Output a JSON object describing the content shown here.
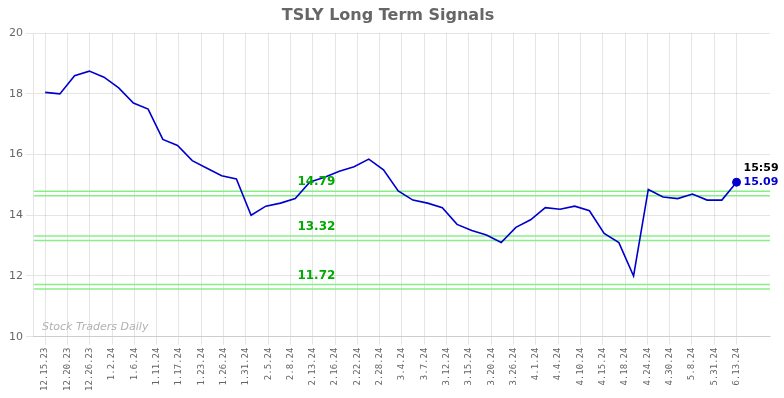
{
  "chart_data": {
    "type": "line",
    "title": "TSLY Long Term Signals",
    "x": [
      0,
      0.6596,
      1.3191,
      1.9787,
      2.6383,
      3.2979,
      3.9574,
      4.617,
      5.2766,
      5.9362,
      6.5957,
      7.2553,
      7.9149,
      8.5745,
      9.234,
      9.8936,
      10.5532,
      11.2128,
      11.8723,
      12.5319,
      13.1915,
      13.8511,
      14.5106,
      15.1702,
      15.8298,
      16.4894,
      17.1489,
      17.8085,
      18.4681,
      19.1277,
      19.7872,
      20.4468,
      21.1064,
      21.766,
      22.4255,
      23.0851,
      23.7447,
      24.4043,
      25.0638,
      25.7234,
      26.383,
      27.0426,
      27.7021,
      28.3617,
      29.0213,
      29.6809,
      30.3404,
      31
    ],
    "values": [
      18.05,
      18.0,
      18.6,
      18.75,
      18.55,
      18.2,
      17.7,
      17.5,
      16.5,
      16.3,
      15.8,
      15.55,
      15.3,
      15.2,
      14.0,
      14.3,
      14.4,
      14.55,
      15.1,
      15.25,
      15.45,
      15.6,
      15.85,
      15.5,
      14.8,
      14.5,
      14.4,
      14.25,
      13.7,
      13.5,
      13.35,
      13.1,
      13.6,
      13.85,
      14.25,
      14.2,
      14.3,
      14.15,
      13.4,
      13.1,
      12.0,
      14.85,
      14.6,
      14.55,
      14.7,
      14.5,
      14.5,
      15.09
    ],
    "color": "#0000cc",
    "xlim": [
      -0.5,
      32.5
    ],
    "xticks": [
      {
        "value": 0,
        "label": "12.15.23"
      },
      {
        "value": 1,
        "label": "12.20.23"
      },
      {
        "value": 2,
        "label": "12.26.23"
      },
      {
        "value": 3,
        "label": "1.2.24"
      },
      {
        "value": 4,
        "label": "1.6.24"
      },
      {
        "value": 5,
        "label": "1.11.24"
      },
      {
        "value": 6,
        "label": "1.17.24"
      },
      {
        "value": 7,
        "label": "1.23.24"
      },
      {
        "value": 8,
        "label": "1.26.24"
      },
      {
        "value": 9,
        "label": "1.31.24"
      },
      {
        "value": 10,
        "label": "2.5.24"
      },
      {
        "value": 11,
        "label": "2.8.24"
      },
      {
        "value": 12,
        "label": "2.13.24"
      },
      {
        "value": 13,
        "label": "2.16.24"
      },
      {
        "value": 14,
        "label": "2.22.24"
      },
      {
        "value": 15,
        "label": "2.28.24"
      },
      {
        "value": 16,
        "label": "3.4.24"
      },
      {
        "value": 17,
        "label": "3.7.24"
      },
      {
        "value": 18,
        "label": "3.12.24"
      },
      {
        "value": 19,
        "label": "3.15.24"
      },
      {
        "value": 20,
        "label": "3.20.24"
      },
      {
        "value": 21,
        "label": "3.26.24"
      },
      {
        "value": 22,
        "label": "4.1.24"
      },
      {
        "value": 23,
        "label": "4.4.24"
      },
      {
        "value": 24,
        "label": "4.10.24"
      },
      {
        "value": 25,
        "label": "4.15.24"
      },
      {
        "value": 26,
        "label": "4.18.24"
      },
      {
        "value": 27,
        "label": "4.24.24"
      },
      {
        "value": 28,
        "label": "4.30.24"
      },
      {
        "value": 29,
        "label": "5.8.24"
      },
      {
        "value": 30,
        "label": "5.31.24"
      },
      {
        "value": 31,
        "label": "6.13.24"
      }
    ],
    "ylim": [
      10,
      20
    ],
    "yticks": [
      10,
      12,
      14,
      16,
      18,
      20
    ],
    "grid": true,
    "hlines": [
      {
        "value": 14.79,
        "label": "14.79"
      },
      {
        "value": 14.64
      },
      {
        "value": 13.32,
        "label": "13.32"
      },
      {
        "value": 13.17
      },
      {
        "value": 11.72,
        "label": "11.72"
      },
      {
        "value": 11.57
      }
    ],
    "hline_color": "#88ee88",
    "hline_label_color": "#00aa00",
    "annotations": [
      "15:59",
      "15.09"
    ],
    "watermark": "Stock Traders Daily"
  }
}
